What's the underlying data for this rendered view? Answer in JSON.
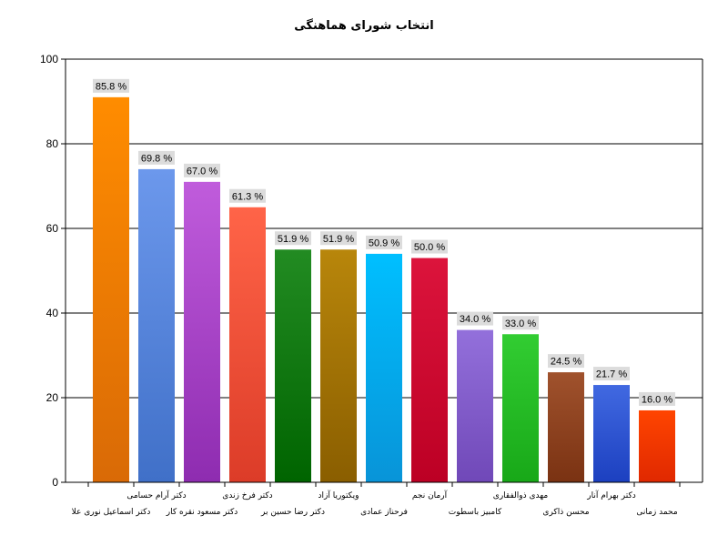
{
  "chart_data": {
    "type": "bar",
    "title": "انتخاب شورای هماهنگی",
    "ylim": [
      0,
      100
    ],
    "yticks": [
      0,
      20,
      40,
      60,
      80,
      100
    ],
    "grid": true,
    "categories": [
      "دکتر اسماعیل نوری علا",
      "دکتر آرام حسامی",
      "دکتر مسعود نقره کار",
      "دکتر فرخ زندی",
      "دکتر رضا حسین بر",
      "ویکتوریا آزاد",
      "فرحناز عمادی",
      "آرمان نجم",
      "کامبیز باسطوت",
      "مهدی ذوالفقاری",
      "محسن ذاکری",
      "دکتر بهرام آنار",
      "محمد زمانی"
    ],
    "values": [
      91,
      74,
      71,
      65,
      55,
      55,
      54,
      53,
      36,
      35,
      26,
      23,
      17
    ],
    "data_labels": [
      "85.8 %",
      "69.8 %",
      "67.0 %",
      "61.3 %",
      "51.9 %",
      "51.9 %",
      "50.9 %",
      "50.0 %",
      "34.0 %",
      "33.0 %",
      "24.5 %",
      "21.7 %",
      "16.0 %"
    ],
    "colors": [
      [
        "#FF8C00",
        "#D96A06"
      ],
      [
        "#6C98EC",
        "#4070C8"
      ],
      [
        "#C05CDC",
        "#8E2CB0"
      ],
      [
        "#FF6448",
        "#DC3C28"
      ],
      [
        "#228B22",
        "#006400"
      ],
      [
        "#B8860B",
        "#8A5E00"
      ],
      [
        "#00BFFF",
        "#0894D8"
      ],
      [
        "#DC143C",
        "#BC0024"
      ],
      [
        "#9370DB",
        "#7048B8"
      ],
      [
        "#32CD32",
        "#18A818"
      ],
      [
        "#A0522D",
        "#7A3212"
      ],
      [
        "#4169E1",
        "#1C40C0"
      ],
      [
        "#FF4500",
        "#E02800"
      ]
    ]
  }
}
